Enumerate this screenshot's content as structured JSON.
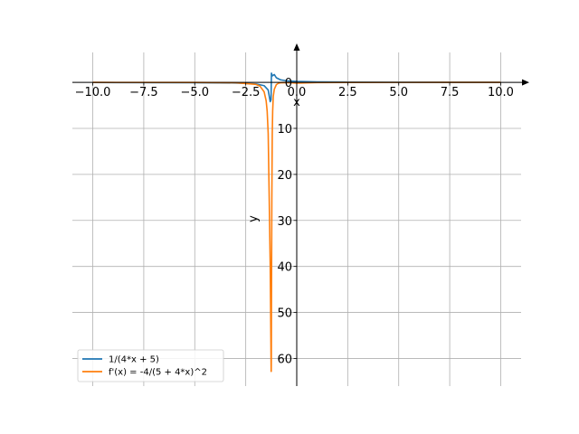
{
  "chart_data": {
    "type": "line",
    "title": "",
    "xlabel": "x",
    "ylabel": "y",
    "xlim": [
      -11,
      11
    ],
    "ylim": [
      -66,
      6.5
    ],
    "x_ticks": [
      -10,
      -7.5,
      -5,
      -2.5,
      0,
      2.5,
      5,
      7.5,
      10
    ],
    "x_tick_labels": [
      "−10.0",
      "−7.5",
      "−5.0",
      "−2.5",
      "0.0",
      "2.5",
      "5.0",
      "7.5",
      "10.0"
    ],
    "y_ticks": [
      0,
      -10,
      -20,
      -30,
      -40,
      -50,
      -60
    ],
    "y_tick_labels": [
      "0",
      "10",
      "20",
      "30",
      "40",
      "50",
      "60"
    ],
    "grid": true,
    "legend_position": "lower-left",
    "series": [
      {
        "name": "1/(4*x + 5)",
        "color": "#1f77b4",
        "x": [
          -10.0,
          -5.0,
          -3.0,
          -2.0,
          -1.6,
          -1.4,
          -1.3,
          -1.26,
          -1.24,
          -1.2,
          -1.1,
          -1.0,
          -0.8,
          -0.5,
          0.0,
          1.0,
          2.5,
          5.0,
          7.5,
          10.0
        ],
        "y": [
          -0.0286,
          -0.0667,
          -0.1429,
          -0.3333,
          -0.7143,
          -1.6667,
          -4.2,
          -3.8,
          2.0,
          1.4,
          1.7,
          1.0,
          0.5556,
          0.3333,
          0.2,
          0.1111,
          0.0667,
          0.04,
          0.0286,
          0.0222
        ]
      },
      {
        "name": "f'(x) = -4/(5 + 4*x)^2",
        "color": "#ff7f0e",
        "x": [
          -10.0,
          -5.0,
          -3.0,
          -2.0,
          -1.8,
          -1.6,
          -1.5,
          -1.45,
          -1.4,
          -1.35,
          -1.3,
          -1.28,
          -1.26,
          -1.255,
          -1.25,
          -1.245,
          -1.24,
          -1.22,
          -1.2,
          -1.18,
          -1.15,
          -1.1,
          -1.0,
          -0.9,
          -0.8,
          -0.6,
          -0.4,
          0.0,
          1.0,
          2.5,
          5.0,
          7.5,
          10.0
        ],
        "y": [
          -0.0033,
          -0.0178,
          -0.0816,
          -0.4444,
          -0.8264,
          -2.0408,
          -4.0,
          -6.25,
          -11.11,
          -25.0,
          -40.0,
          -50.0,
          -60.0,
          -62.8,
          -62.8,
          -60.0,
          -50.0,
          -25.0,
          -11.11,
          -6.25,
          -3.0,
          -1.5,
          -0.5,
          -0.2,
          -0.09,
          -0.06,
          -0.05,
          -0.16,
          -0.0494,
          -0.0178,
          -0.0064,
          -0.0033,
          -0.0016
        ]
      }
    ]
  }
}
